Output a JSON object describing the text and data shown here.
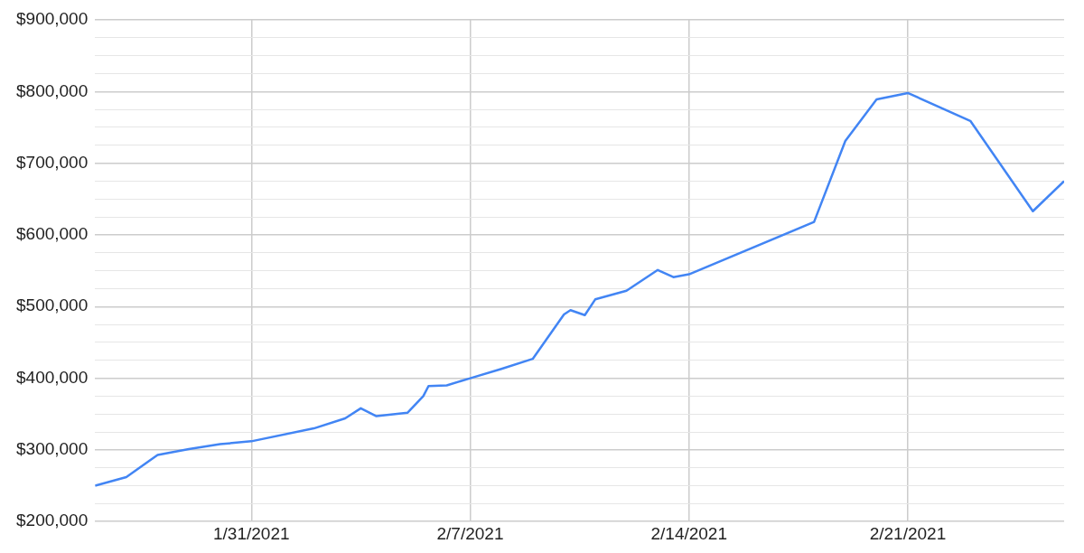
{
  "chart_data": {
    "type": "line",
    "x": [
      "2021-01-26",
      "2021-01-27",
      "2021-01-28",
      "2021-01-29",
      "2021-01-30",
      "2021-01-31",
      "2021-02-02",
      "2021-02-03",
      "2021-02-03T12:00",
      "2021-02-04",
      "2021-02-05",
      "2021-02-05T12:00",
      "2021-02-05T16:00",
      "2021-02-06T06:00",
      "2021-02-07",
      "2021-02-08",
      "2021-02-09",
      "2021-02-10",
      "2021-02-10T05:00",
      "2021-02-10T16:00",
      "2021-02-11",
      "2021-02-12",
      "2021-02-13",
      "2021-02-13T12:00",
      "2021-02-14",
      "2021-02-18",
      "2021-02-19",
      "2021-02-20",
      "2021-02-21",
      "2021-02-23",
      "2021-02-25",
      "2021-02-26"
    ],
    "series": [
      {
        "color": "#4285f4",
        "values": [
          250000,
          262000,
          293000,
          301000,
          308000,
          312000,
          330000,
          344000,
          358000,
          347000,
          352000,
          375000,
          389000,
          390000,
          400000,
          413000,
          427000,
          489000,
          495000,
          488000,
          510000,
          522000,
          551000,
          541000,
          545000,
          618000,
          731000,
          789000,
          798000,
          759000,
          633000,
          675000
        ]
      }
    ],
    "xlim": [
      "2021-01-26",
      "2021-02-26"
    ],
    "xticks": [
      {
        "value": "2021-01-31",
        "label": "1/31/2021"
      },
      {
        "value": "2021-02-07",
        "label": "2/7/2021"
      },
      {
        "value": "2021-02-14",
        "label": "2/14/2021"
      },
      {
        "value": "2021-02-21",
        "label": "2/21/2021"
      }
    ],
    "ylim": [
      200000,
      900000
    ],
    "yticks": [
      {
        "value": 200000,
        "label": "$200,000"
      },
      {
        "value": 225000,
        "label": null
      },
      {
        "value": 250000,
        "label": null
      },
      {
        "value": 275000,
        "label": null
      },
      {
        "value": 300000,
        "label": "$300,000"
      },
      {
        "value": 325000,
        "label": null
      },
      {
        "value": 350000,
        "label": null
      },
      {
        "value": 375000,
        "label": null
      },
      {
        "value": 400000,
        "label": "$400,000"
      },
      {
        "value": 425000,
        "label": null
      },
      {
        "value": 450000,
        "label": null
      },
      {
        "value": 475000,
        "label": null
      },
      {
        "value": 500000,
        "label": "$500,000"
      },
      {
        "value": 525000,
        "label": null
      },
      {
        "value": 550000,
        "label": null
      },
      {
        "value": 575000,
        "label": null
      },
      {
        "value": 600000,
        "label": "$600,000"
      },
      {
        "value": 625000,
        "label": null
      },
      {
        "value": 650000,
        "label": null
      },
      {
        "value": 675000,
        "label": null
      },
      {
        "value": 700000,
        "label": "$700,000"
      },
      {
        "value": 725000,
        "label": null
      },
      {
        "value": 750000,
        "label": null
      },
      {
        "value": 775000,
        "label": null
      },
      {
        "value": 800000,
        "label": "$800,000"
      },
      {
        "value": 825000,
        "label": null
      },
      {
        "value": 850000,
        "label": null
      },
      {
        "value": 875000,
        "label": null
      },
      {
        "value": 900000,
        "label": "$900,000"
      }
    ],
    "grid": true,
    "legend": false,
    "marker": "none",
    "line_style": "solid"
  }
}
